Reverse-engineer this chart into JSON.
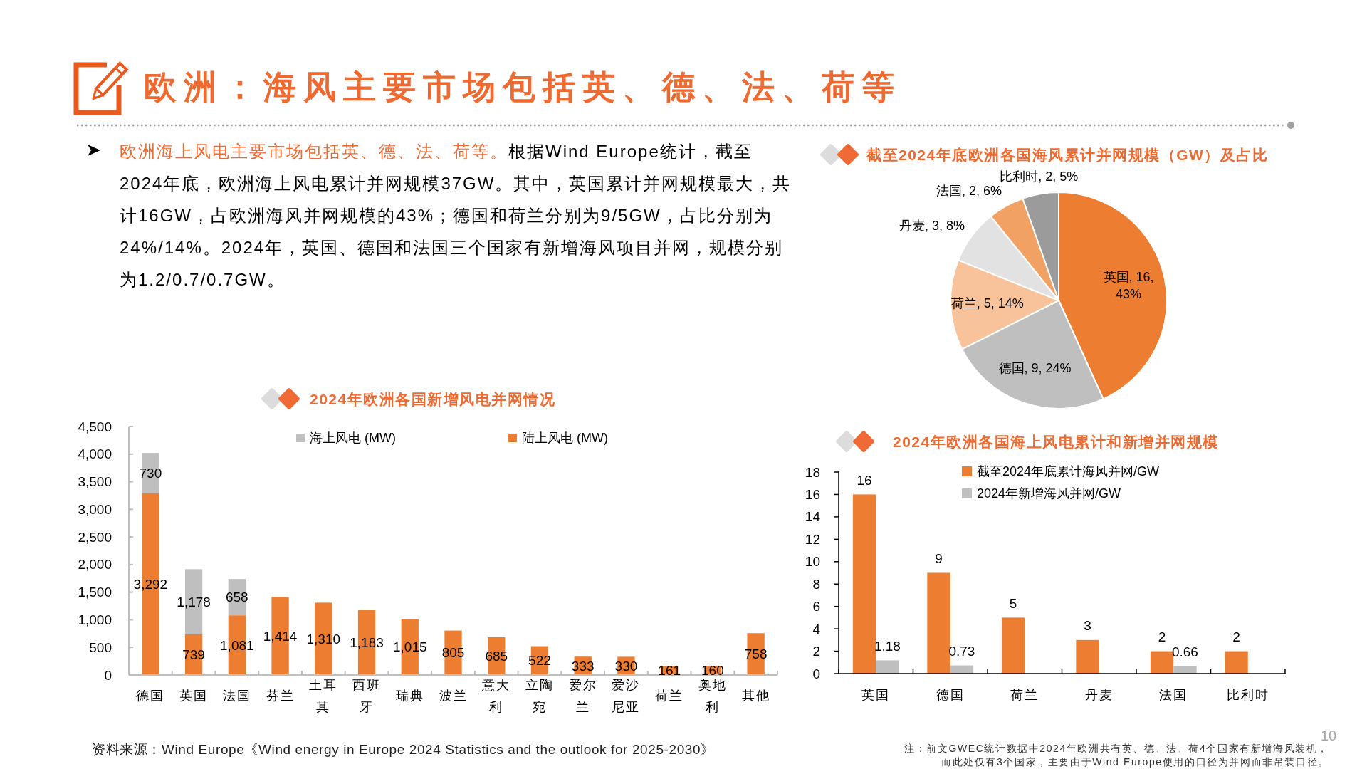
{
  "chart_data": [
    {
      "type": "other",
      "title": "欧洲：海风主要市场包括英、德、法、荷等",
      "annotations": [
        "欧洲海上风电主要市场包括英、德、法、荷等。根据Wind Europe统计，截至2024年底，欧洲海上风电累计并网规模37GW。其中，英国累计并网规模最大，共计16GW，占欧洲海风并网规模的43%；德国和荷兰分别为9/5GW，占比分别为24%/14%。2024年，英国、德国和法国三个国家有新增海风项目并网，规模分别为1.2/0.7/0.7GW。",
        "10"
      ]
    },
    {
      "type": "pie",
      "title": "截至2024年底欧洲各国海风累计并网规模（GW）及占比",
      "categories": [
        "英国",
        "德国",
        "荷兰",
        "丹麦",
        "法国",
        "比利时"
      ],
      "values": [
        16,
        9,
        5,
        3,
        2,
        2
      ],
      "colors": [
        "#ed7d31",
        "#bfbfbf",
        "#f8c39a",
        "#e2e2e2",
        "#f2a165",
        "#9b9b9b"
      ],
      "value_labels": [
        "16, 43%",
        "9, 24%",
        "5, 14%",
        "3, 8%",
        "2, 6%",
        "2, 5%"
      ]
    },
    {
      "type": "bar",
      "stacked": true,
      "title": "2024年欧洲各国新增风电并网情况",
      "categories": [
        "德国",
        "英国",
        "法国",
        "芬兰",
        "土耳其",
        "西班牙",
        "瑞典",
        "波兰",
        "意大利",
        "立陶宛",
        "爱尔兰",
        "爱沙尼亚",
        "荷兰",
        "奥地利",
        "其他"
      ],
      "series": [
        {
          "name": "陆上风电 (MW)",
          "color": "#ed7d31",
          "values": [
            3292,
            739,
            1081,
            1414,
            1310,
            1183,
            1015,
            805,
            685,
            522,
            333,
            330,
            161,
            160,
            758
          ],
          "value_labels": [
            "3,292",
            "739",
            "1,081",
            "1,414",
            "1,310",
            "1,183",
            "1,015",
            "805",
            "685",
            "522",
            "333",
            "330",
            "161",
            "160",
            "758"
          ]
        },
        {
          "name": "海上风电 (MW)",
          "color": "#bfbfbf",
          "values": [
            730,
            1178,
            658,
            null,
            null,
            null,
            null,
            null,
            null,
            null,
            null,
            null,
            null,
            null,
            null
          ],
          "value_labels": [
            "730",
            "1,178",
            "658",
            null,
            null,
            null,
            null,
            null,
            null,
            null,
            null,
            null,
            null,
            null,
            null
          ]
        }
      ],
      "ylim": [
        0,
        4500
      ],
      "yticks": [
        0,
        500,
        {
          "value": 1000,
          "label": "1,000"
        },
        {
          "value": 1500,
          "label": "1,500"
        },
        {
          "value": 2000,
          "label": "2,000"
        },
        {
          "value": 2500,
          "label": "2,500"
        },
        {
          "value": 3000,
          "label": "3,000"
        },
        {
          "value": 3500,
          "label": "3,500"
        },
        {
          "value": 4000,
          "label": "4,000"
        },
        {
          "value": 4500,
          "label": "4,500"
        }
      ],
      "legend": "top",
      "annotations": [
        "资料来源：Wind Europe《Wind energy in Europe 2024 Statistics and the outlook for 2025-2030》"
      ]
    },
    {
      "type": "bar",
      "title": "2024年欧洲各国海上风电累计和新增并网规模",
      "categories": [
        "英国",
        "德国",
        "荷兰",
        "丹麦",
        "法国",
        "比利时"
      ],
      "series": [
        {
          "name": "截至2024年底累计海风并网/GW",
          "color": "#ed7d31",
          "values": [
            16,
            9,
            5,
            3,
            2,
            2
          ]
        },
        {
          "name": "2024年新增海风并网/GW",
          "color": "#bfbfbf",
          "values": [
            1.18,
            0.73,
            null,
            null,
            0.66,
            null
          ]
        }
      ],
      "ylim": [
        0,
        18
      ],
      "yticks": [
        0,
        2,
        4,
        6,
        8,
        10,
        12,
        14,
        16,
        18
      ],
      "data_labels": true,
      "legend": "top",
      "annotations": [
        "注：前文GWEC统计数据中2024年欧洲共有英、德、法、荷4个国家有新增海风装机，而此处仅有3个国家，主要由于Wind Europe使用的口径为并网而非吊装口径。"
      ]
    }
  ]
}
